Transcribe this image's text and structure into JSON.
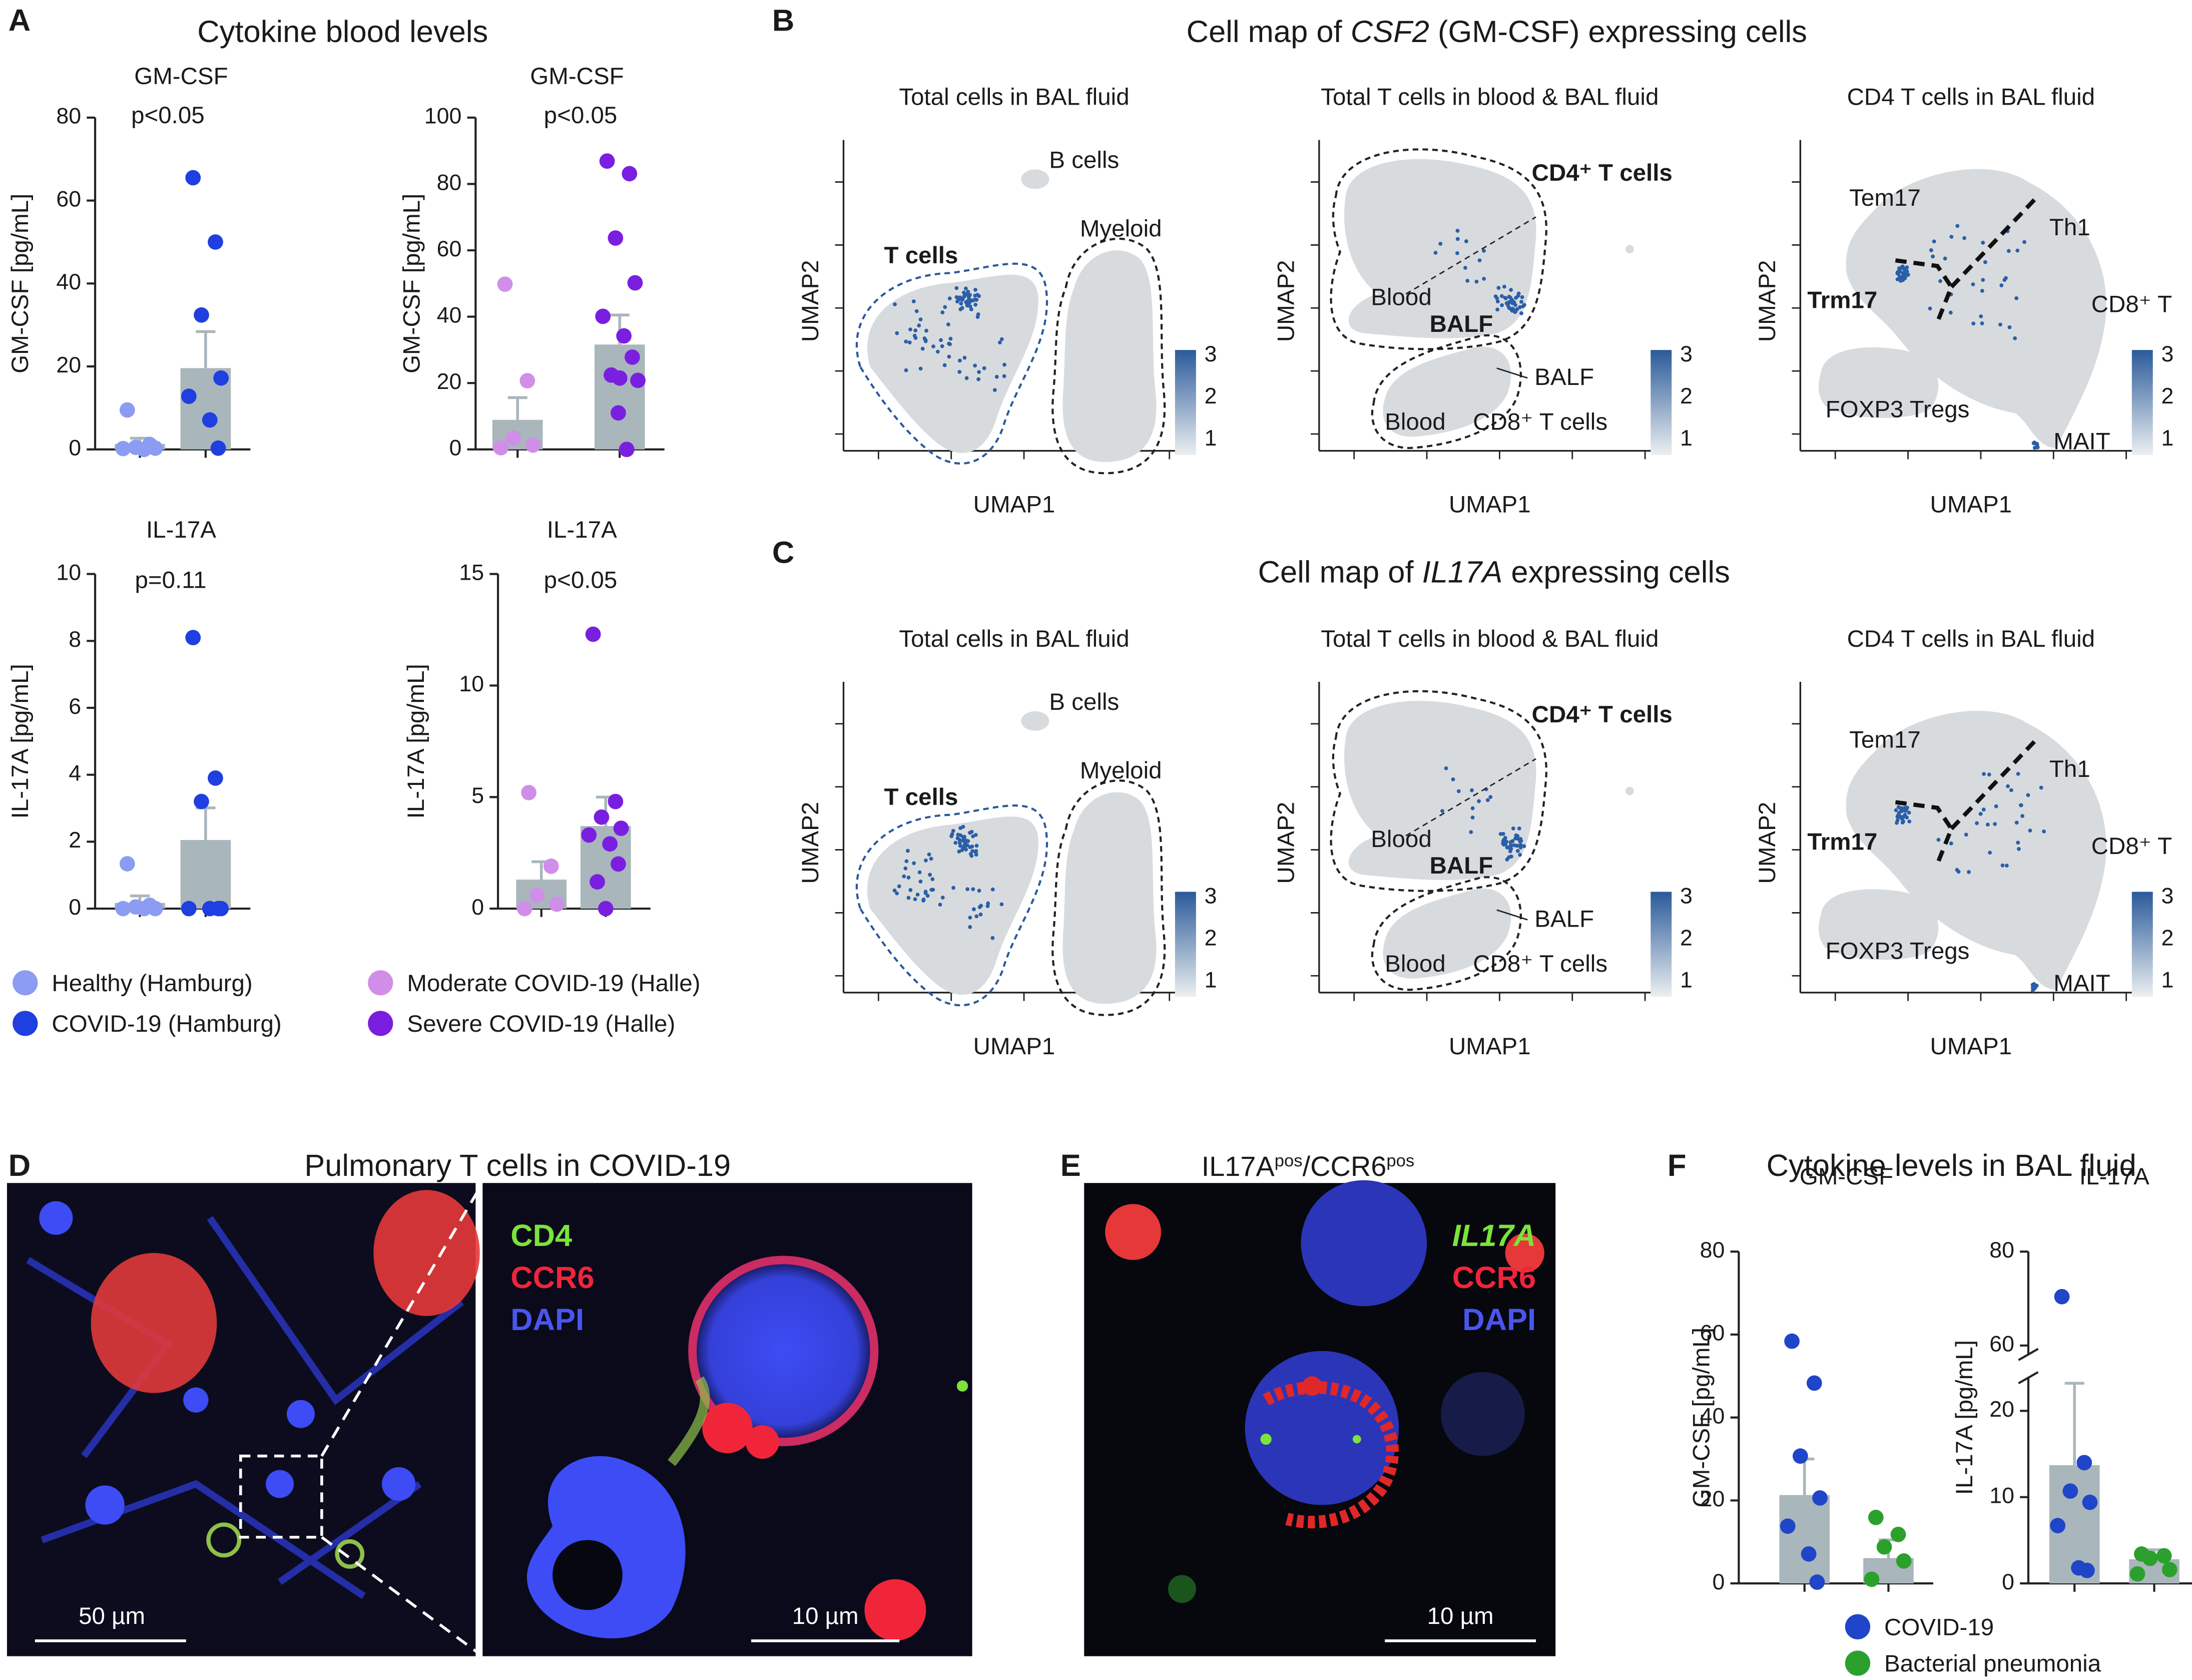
{
  "panel_labels": [
    "A",
    "B",
    "C",
    "D",
    "E",
    "F"
  ],
  "panel_a": {
    "title": "Cytokine blood levels",
    "legend": [
      {
        "name": "Healthy (Hamburg)",
        "color": "#8b9cf2"
      },
      {
        "name": "COVID-19 (Hamburg)",
        "color": "#1f3fe0"
      },
      {
        "name": "Moderate COVID-19 (Halle)",
        "color": "#d08ee8"
      },
      {
        "name": "Severe COVID-19 (Halle)",
        "color": "#7a1fe0"
      }
    ]
  },
  "chart_data": [
    {
      "type": "bar",
      "title": "GM-CSF",
      "y_label": "GM-CSF [pg/mL]",
      "annotation": "p<0.05",
      "categories": [
        null,
        null
      ],
      "values": [
        1.3,
        19.6
      ],
      "errors": [
        1.4,
        8.8
      ],
      "points": [
        [
          9.5,
          1.2,
          0.5,
          0.3,
          0.2,
          0
        ],
        [
          65.5,
          50,
          32.4,
          17.2,
          12.8,
          7.1,
          0.3
        ]
      ],
      "colors": [
        "#8b9cf2",
        "#1f3fe0"
      ],
      "bar_color": "#a9b6bb",
      "ylim": [
        0,
        80
      ],
      "yticks": [
        0,
        20,
        40,
        60,
        80
      ]
    },
    {
      "type": "bar",
      "title": "GM-CSF",
      "y_label": "GM-CSF [pg/mL]",
      "annotation": "p<0.05",
      "categories": [
        null,
        null
      ],
      "values": [
        8.9,
        31.6
      ],
      "errors": [
        6.7,
        8.9
      ],
      "points": [
        [
          49.8,
          20.7,
          3.4,
          1.3,
          0.5
        ],
        [
          86.9,
          83.1,
          63.7,
          50.2,
          40.1,
          34.2,
          27.8,
          22.4,
          21.5,
          20.8,
          11,
          0
        ]
      ],
      "colors": [
        "#d08ee8",
        "#7a1fe0"
      ],
      "bar_color": "#a9b6bb",
      "ylim": [
        0,
        100
      ],
      "yticks": [
        0,
        20,
        40,
        60,
        80,
        100
      ]
    },
    {
      "type": "bar",
      "title": "IL-17A",
      "y_label": "IL-17A [pg/mL]",
      "annotation": "p=0.11",
      "categories": [
        null,
        null
      ],
      "values": [
        0.17,
        2.05
      ],
      "errors": [
        0.21,
        0.96
      ],
      "points": [
        [
          1.34,
          0.1,
          0.05,
          0,
          0,
          0
        ],
        [
          8.1,
          3.9,
          3.2,
          0,
          0,
          0,
          0
        ]
      ],
      "colors": [
        "#8b9cf2",
        "#1f3fe0"
      ],
      "bar_color": "#a9b6bb",
      "ylim": [
        0,
        10
      ],
      "yticks": [
        0,
        2,
        4,
        6,
        8,
        10
      ]
    },
    {
      "type": "bar",
      "title": "IL-17A",
      "y_label": "IL-17A [pg/mL]",
      "annotation": "p<0.05",
      "categories": [
        null,
        null
      ],
      "values": [
        1.3,
        3.7
      ],
      "errors": [
        0.8,
        1.3
      ],
      "points": [
        [
          5.2,
          1.9,
          0.6,
          0.2,
          0
        ],
        [
          12.3,
          4.8,
          4.1,
          3.6,
          3.3,
          2.9,
          2.0,
          1.2,
          0
        ]
      ],
      "colors": [
        "#d08ee8",
        "#7a1fe0"
      ],
      "bar_color": "#a9b6bb",
      "ylim": [
        0,
        15
      ],
      "yticks": [
        0,
        5,
        10,
        15
      ]
    },
    {
      "type": "bar",
      "title": "GM-CSF",
      "y_label": "GM-CSF [pg/mL]",
      "categories": [
        null,
        null
      ],
      "values": [
        21.3,
        6.1
      ],
      "errors": [
        8.7,
        4.4
      ],
      "points": [
        [
          58.4,
          48.3,
          30.7,
          20.6,
          13.8,
          7.1,
          0.3
        ],
        [
          15.9,
          11.8,
          8.8,
          5.4,
          1
        ]
      ],
      "colors": [
        "#1f45c8",
        "#2ca02c"
      ],
      "bar_color": "#a9b6bb",
      "ylim": [
        0,
        80
      ],
      "yticks": [
        0,
        20,
        40,
        60,
        80
      ]
    },
    {
      "type": "bar",
      "title": "IL-17A",
      "y_label": "IL-17A [pg/mL]",
      "categories": [
        null,
        null
      ],
      "values": [
        13.7,
        2.8
      ],
      "errors": [
        9.5,
        1.1
      ],
      "points": [
        [
          70.4,
          14,
          10.7,
          9.4,
          6.7,
          1.8,
          1.5
        ],
        [
          3.4,
          3.2,
          2.9,
          1.6,
          1.1
        ]
      ],
      "colors": [
        "#1f45c8",
        "#2ca02c"
      ],
      "bar_color": "#a9b6bb",
      "ylim": [
        0,
        80
      ],
      "yticks": [
        0,
        10,
        20,
        60,
        80
      ],
      "broken_axis": true
    }
  ],
  "panel_b": {
    "title_parts": [
      {
        "text": "Cell map of "
      },
      {
        "text": "CSF2",
        "italic": true
      },
      {
        "text": " (GM-CSF) expressing cells"
      }
    ],
    "maps": [
      {
        "title": "Total cells in BAL fluid",
        "labels": [
          "B cells",
          "Myeloid",
          "T cells"
        ],
        "x_label": "UMAP1",
        "y_label": "UMAP2",
        "colorbar_ticks": [
          3,
          2,
          1
        ]
      },
      {
        "title": "Total T cells in blood & BAL fluid",
        "labels": [
          "CD4⁺ T cells",
          "Blood",
          "BALF",
          "BALF",
          "Blood",
          "CD8⁺ T cells"
        ],
        "x_label": "UMAP1",
        "y_label": "UMAP2",
        "colorbar_ticks": [
          3,
          2,
          1
        ]
      },
      {
        "title": "CD4 T cells in BAL fluid",
        "labels": [
          "Tem17",
          "Th1",
          "Trm17",
          "CD8⁺ T",
          "FOXP3 Tregs",
          "MAIT"
        ],
        "x_label": "UMAP1",
        "y_label": "UMAP2",
        "colorbar_ticks": [
          3,
          2,
          1
        ]
      }
    ]
  },
  "panel_c": {
    "title_parts": [
      {
        "text": "Cell map of "
      },
      {
        "text": "IL17A",
        "italic": true
      },
      {
        "text": " expressing cells"
      }
    ],
    "maps": [
      {
        "title": "Total cells in BAL fluid",
        "labels": [
          "B cells",
          "Myeloid",
          "T cells"
        ],
        "x_label": "UMAP1",
        "y_label": "UMAP2",
        "colorbar_ticks": [
          3,
          2,
          1
        ]
      },
      {
        "title": "Total T cells in blood & BAL fluid",
        "labels": [
          "CD4⁺ T cells",
          "Blood",
          "BALF",
          "BALF",
          "Blood",
          "CD8⁺ T cells"
        ],
        "x_label": "UMAP1",
        "y_label": "UMAP2",
        "colorbar_ticks": [
          3,
          2,
          1
        ]
      },
      {
        "title": "CD4 T cells in BAL fluid",
        "labels": [
          "Tem17",
          "Th1",
          "Trm17",
          "CD8⁺ T",
          "FOXP3 Tregs",
          "MAIT"
        ],
        "x_label": "UMAP1",
        "y_label": "UMAP2",
        "colorbar_ticks": [
          3,
          2,
          1
        ]
      }
    ]
  },
  "panel_d": {
    "title": "Pulmonary T cells in COVID-19",
    "channels": [
      {
        "name": "CD4",
        "color": "#7be33a"
      },
      {
        "name": "CCR6",
        "color": "#f0253a"
      },
      {
        "name": "DAPI",
        "color": "#4a55f0"
      }
    ],
    "scale_bars": [
      "50 µm",
      "10 µm"
    ]
  },
  "panel_e": {
    "title_parts": [
      {
        "text": "IL17A"
      },
      {
        "text": "pos",
        "sup": true
      },
      {
        "text": "/CCR6"
      },
      {
        "text": "pos",
        "sup": true
      }
    ],
    "channels": [
      {
        "name": "IL17A",
        "color": "#7be33a",
        "italic": true
      },
      {
        "name": "CCR6",
        "color": "#f0253a"
      },
      {
        "name": "DAPI",
        "color": "#4a55f0"
      }
    ],
    "scale_bar": "10 µm"
  },
  "panel_f": {
    "title": "Cytokine levels in BAL fluid",
    "legend": [
      {
        "name": "COVID-19",
        "color": "#1f45c8"
      },
      {
        "name": "Bacterial pneumonia",
        "color": "#2ca02c"
      }
    ]
  }
}
